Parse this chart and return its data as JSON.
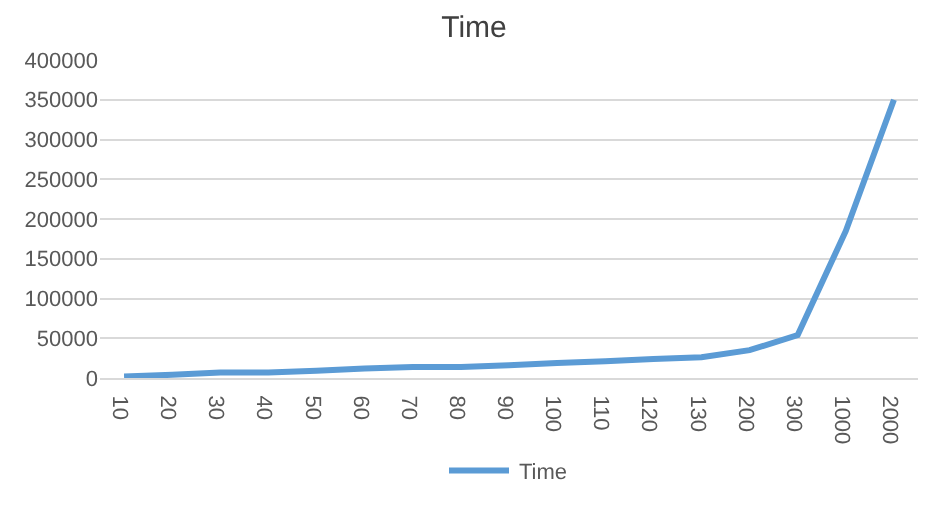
{
  "chart_data": {
    "type": "line",
    "title": "Time",
    "categories": [
      "10",
      "20",
      "30",
      "40",
      "50",
      "60",
      "70",
      "80",
      "90",
      "100",
      "110",
      "120",
      "130",
      "200",
      "300",
      "1000",
      "2000"
    ],
    "series": [
      {
        "name": "Time",
        "color": "#5b9bd5",
        "values": [
          2000,
          4000,
          7000,
          7000,
          9000,
          12000,
          14000,
          14000,
          16000,
          19000,
          21000,
          24000,
          26000,
          35000,
          54000,
          185000,
          350000
        ]
      }
    ],
    "ylim": [
      0,
      400000
    ],
    "yticks": [
      0,
      50000,
      100000,
      150000,
      200000,
      250000,
      300000,
      350000,
      400000
    ],
    "grid": "y",
    "legend": "bottom",
    "marker": "none",
    "line_style": "solid"
  }
}
